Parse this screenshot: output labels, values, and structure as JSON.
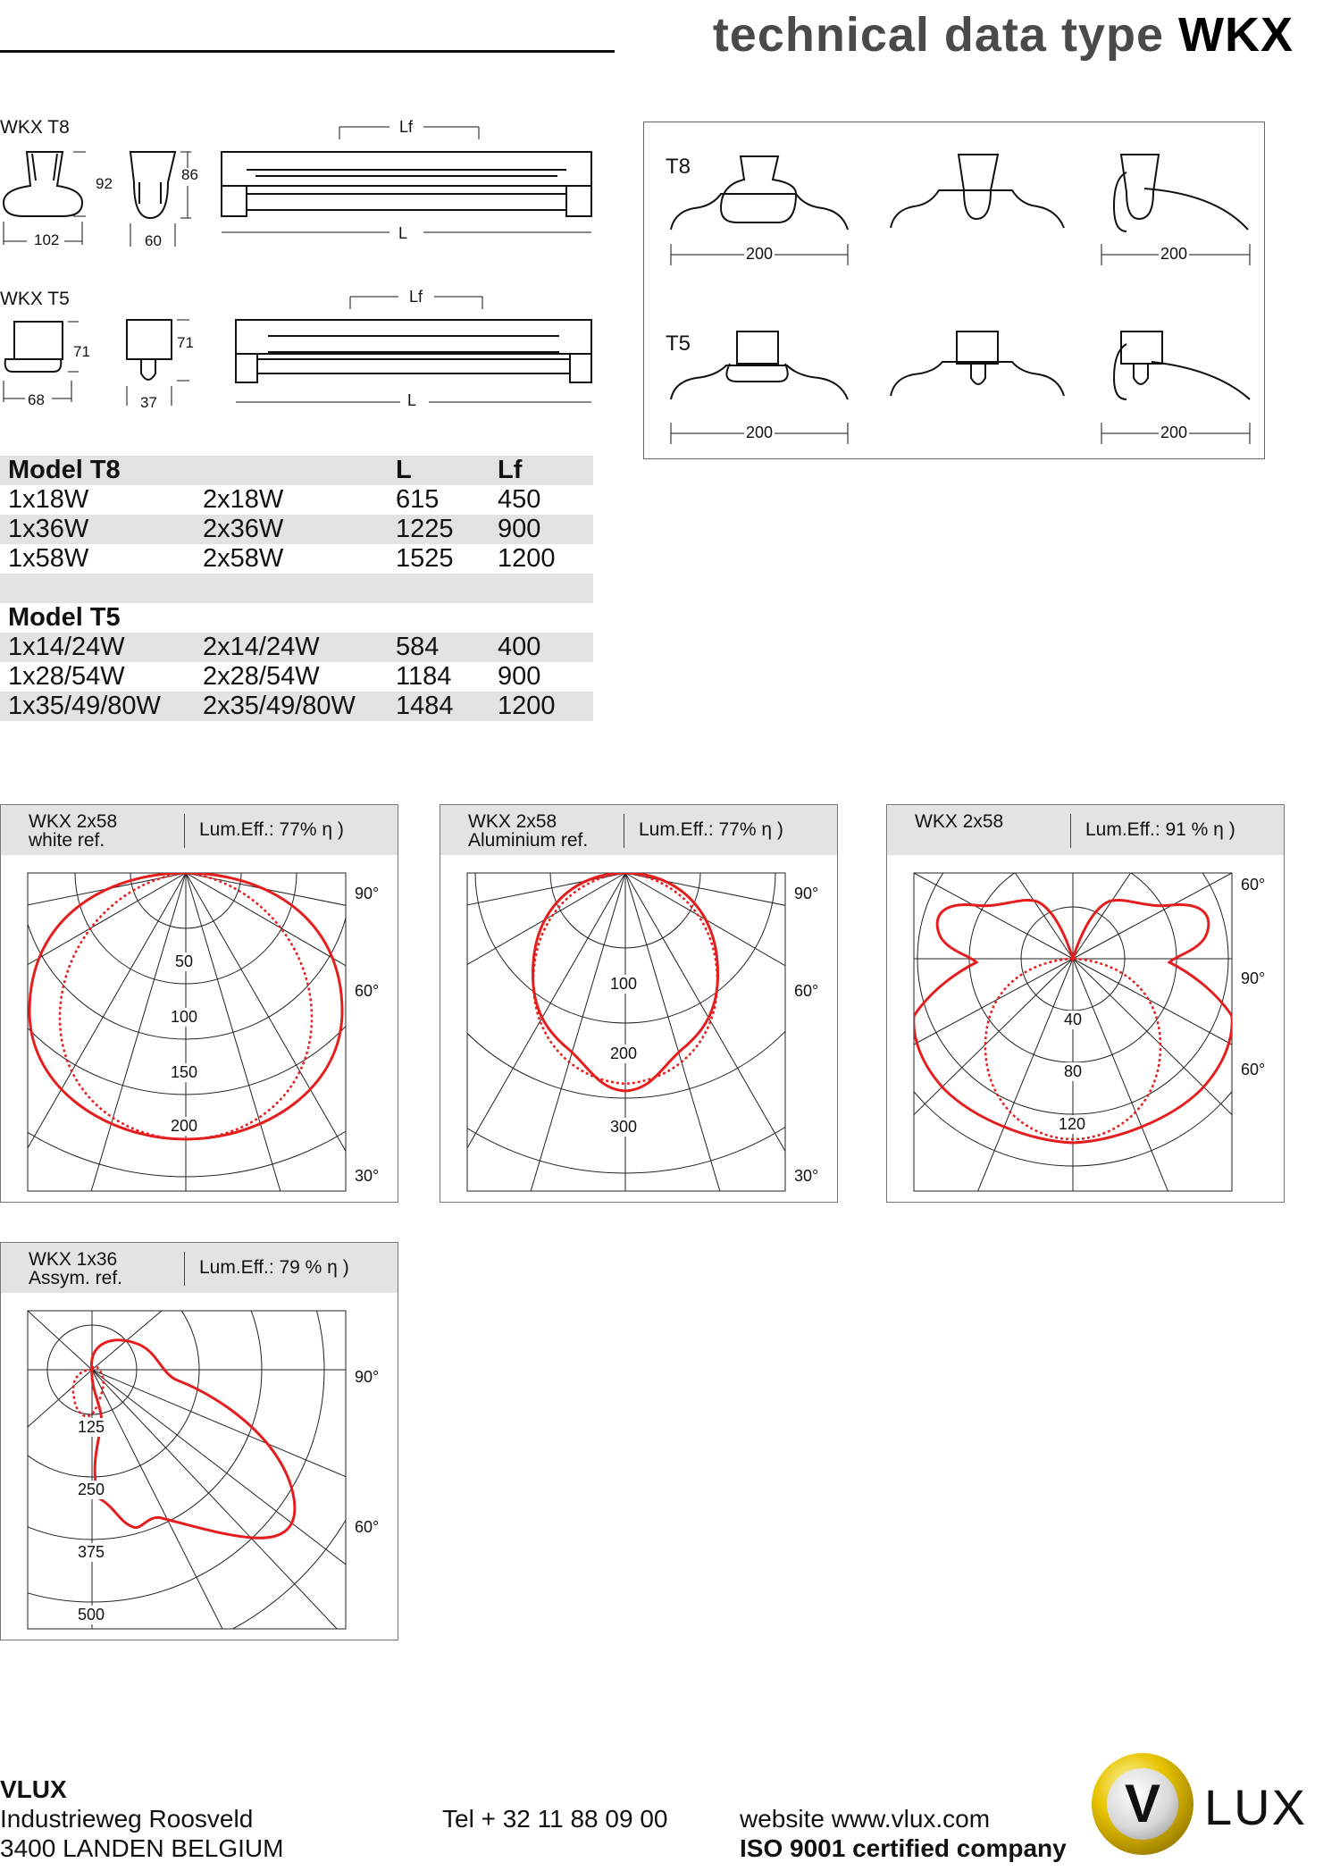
{
  "header": {
    "title_prefix": "technical data type",
    "title_model": "WKX"
  },
  "dims": {
    "t8": {
      "title": "WKX T8",
      "w": "102",
      "h": "92",
      "w2": "60",
      "h2": "86",
      "lf": "Lf",
      "l": "L"
    },
    "t5": {
      "title": "WKX T5",
      "w": "68",
      "h": "71",
      "w2": "37",
      "h2": "71",
      "lf": "Lf",
      "l": "L"
    }
  },
  "mounting": {
    "t8_label": "T8",
    "t5_label": "T5",
    "dist": "200"
  },
  "models": {
    "t8_header": [
      "Model T8",
      "",
      "L",
      "Lf"
    ],
    "t8_rows": [
      [
        "1x18W",
        "2x18W",
        "615",
        "450"
      ],
      [
        "1x36W",
        "2x36W",
        "1225",
        "900"
      ],
      [
        "1x58W",
        "2x58W",
        "1525",
        "1200"
      ]
    ],
    "t5_header": [
      "Model T5",
      "",
      "",
      ""
    ],
    "t5_rows": [
      [
        "1x14/24W",
        "2x14/24W",
        "584",
        "400"
      ],
      [
        "1x28/54W",
        "2x28/54W",
        "1184",
        "900"
      ],
      [
        "1x35/49/80W",
        "2x35/49/80W",
        "1484",
        "1200"
      ]
    ]
  },
  "polar": [
    {
      "name": "WKX 2x58\nwhite ref.",
      "eff": "Lum.Eff.:  77% η  )",
      "radial": [
        "50",
        "100",
        "150",
        "200"
      ],
      "angles": [
        "90°",
        "60°",
        "30°"
      ]
    },
    {
      "name": "WKX 2x58\nAluminium ref.",
      "eff": "Lum.Eff.:  77% η  )",
      "radial": [
        "100",
        "200",
        "300"
      ],
      "angles": [
        "90°",
        "60°",
        "30°"
      ]
    },
    {
      "name": "WKX 2x58",
      "eff": "Lum.Eff.: 91 % η  )",
      "radial": [
        "40",
        "80",
        "120"
      ],
      "angles": [
        "60°",
        "90°",
        "60°"
      ]
    },
    {
      "name": "WKX 1x36\nAssym. ref.",
      "eff": "Lum.Eff.: 79 % η  )",
      "radial": [
        "125",
        "250",
        "375",
        "500"
      ],
      "angles": [
        "90°",
        "60°"
      ]
    }
  ],
  "footer": {
    "company": "VLUX",
    "street": "Industrieweg Roosveld",
    "city": "3400 LANDEN   BELGIUM",
    "tel": "Tel  + 32 11 88 09 00",
    "web": "website www.vlux.com",
    "iso": "ISO 9001 certified company",
    "logo_letter": "V",
    "logo_text": "LUX"
  },
  "colors": {
    "curve": "#e41e1e",
    "grid": "#222",
    "band": "#e3e3e3"
  }
}
